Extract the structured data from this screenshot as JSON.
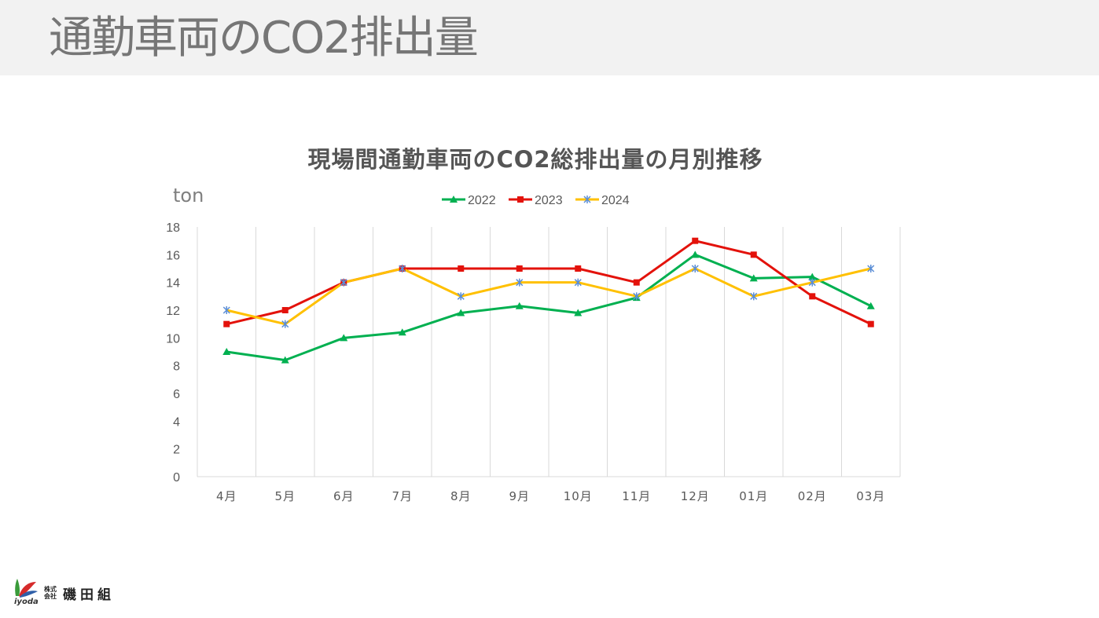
{
  "page": {
    "title": "通勤車両のCO2排出量"
  },
  "chart_data": {
    "type": "line",
    "title": "現場間通勤車両のCO2総排出量の月別推移",
    "unit_label": "ton",
    "xlabel": "",
    "ylabel": "",
    "categories": [
      "4月",
      "5月",
      "6月",
      "7月",
      "8月",
      "9月",
      "10月",
      "11月",
      "12月",
      "01月",
      "02月",
      "03月"
    ],
    "ylim": [
      0,
      18
    ],
    "yticks": [
      0,
      2,
      4,
      6,
      8,
      10,
      12,
      14,
      16,
      18
    ],
    "grid": "vertical",
    "legend_position": "top",
    "series": [
      {
        "name": "2022",
        "color": "#00b050",
        "marker": "triangle",
        "values": [
          9.0,
          8.4,
          10.0,
          10.4,
          11.8,
          12.3,
          11.8,
          12.9,
          16.0,
          14.3,
          14.4,
          12.3
        ]
      },
      {
        "name": "2023",
        "color": "#e3120b",
        "marker": "square",
        "values": [
          11.0,
          12.0,
          14.0,
          15.0,
          15.0,
          15.0,
          15.0,
          14.0,
          17.0,
          16.0,
          13.0,
          11.0
        ]
      },
      {
        "name": "2024",
        "color": "#ffc000",
        "marker": "asterisk",
        "values": [
          12.0,
          11.0,
          14.0,
          15.0,
          13.0,
          14.0,
          14.0,
          13.0,
          15.0,
          13.0,
          14.0,
          15.0
        ]
      }
    ]
  },
  "logo": {
    "latin": "iyoda",
    "kabushiki": "株式会社",
    "name": "磯田組",
    "colors": {
      "green": "#3a9b3a",
      "red": "#d62b2b",
      "blue": "#2f5fa8"
    }
  }
}
